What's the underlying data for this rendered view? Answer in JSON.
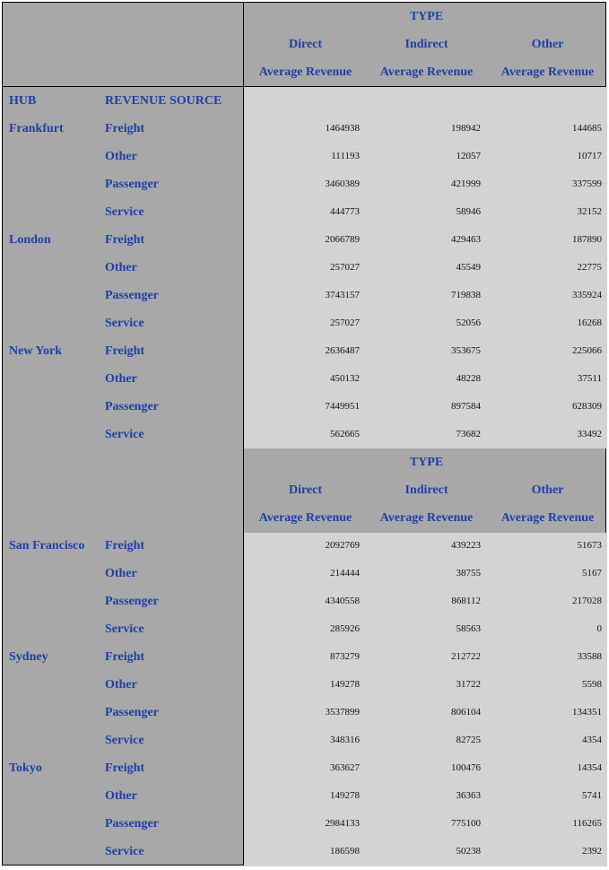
{
  "headers": {
    "type": "TYPE",
    "direct": "Direct",
    "indirect": "Indirect",
    "other": "Other",
    "measure": "Average Revenue",
    "hub": "HUB",
    "revenue_source": "REVENUE SOURCE"
  },
  "rows_part1": [
    {
      "hub": "Frankfurt",
      "source": "Freight",
      "direct": "1464938",
      "indirect": "198942",
      "other": "144685"
    },
    {
      "hub": "",
      "source": "Other",
      "direct": "111193",
      "indirect": "12057",
      "other": "10717"
    },
    {
      "hub": "",
      "source": "Passenger",
      "direct": "3460389",
      "indirect": "421999",
      "other": "337599"
    },
    {
      "hub": "",
      "source": "Service",
      "direct": "444773",
      "indirect": "58946",
      "other": "32152"
    },
    {
      "hub": "London",
      "source": "Freight",
      "direct": "2066789",
      "indirect": "429463",
      "other": "187890"
    },
    {
      "hub": "",
      "source": "Other",
      "direct": "257027",
      "indirect": "45549",
      "other": "22775"
    },
    {
      "hub": "",
      "source": "Passenger",
      "direct": "3743157",
      "indirect": "719838",
      "other": "335924"
    },
    {
      "hub": "",
      "source": "Service",
      "direct": "257027",
      "indirect": "52056",
      "other": "16268"
    },
    {
      "hub": "New York",
      "source": "Freight",
      "direct": "2636487",
      "indirect": "353675",
      "other": "225066"
    },
    {
      "hub": "",
      "source": "Other",
      "direct": "450132",
      "indirect": "48228",
      "other": "37511"
    },
    {
      "hub": "",
      "source": "Passenger",
      "direct": "7449951",
      "indirect": "897584",
      "other": "628309"
    },
    {
      "hub": "",
      "source": "Service",
      "direct": "562665",
      "indirect": "73682",
      "other": "33492"
    }
  ],
  "rows_part2": [
    {
      "hub": "San Francisco",
      "source": "Freight",
      "direct": "2092769",
      "indirect": "439223",
      "other": "51673"
    },
    {
      "hub": "",
      "source": "Other",
      "direct": "214444",
      "indirect": "38755",
      "other": "5167"
    },
    {
      "hub": "",
      "source": "Passenger",
      "direct": "4340558",
      "indirect": "868112",
      "other": "217028"
    },
    {
      "hub": "",
      "source": "Service",
      "direct": "285926",
      "indirect": "58563",
      "other": "0"
    },
    {
      "hub": "Sydney",
      "source": "Freight",
      "direct": "873279",
      "indirect": "212722",
      "other": "33588"
    },
    {
      "hub": "",
      "source": "Other",
      "direct": "149278",
      "indirect": "31722",
      "other": "5598"
    },
    {
      "hub": "",
      "source": "Passenger",
      "direct": "3537899",
      "indirect": "806104",
      "other": "134351"
    },
    {
      "hub": "",
      "source": "Service",
      "direct": "348316",
      "indirect": "82725",
      "other": "4354"
    },
    {
      "hub": "Tokyo",
      "source": "Freight",
      "direct": "363627",
      "indirect": "100476",
      "other": "14354"
    },
    {
      "hub": "",
      "source": "Other",
      "direct": "149278",
      "indirect": "36363",
      "other": "5741"
    },
    {
      "hub": "",
      "source": "Passenger",
      "direct": "2984133",
      "indirect": "775100",
      "other": "116265"
    },
    {
      "hub": "",
      "source": "Service",
      "direct": "186598",
      "indirect": "50238",
      "other": "2392"
    }
  ]
}
